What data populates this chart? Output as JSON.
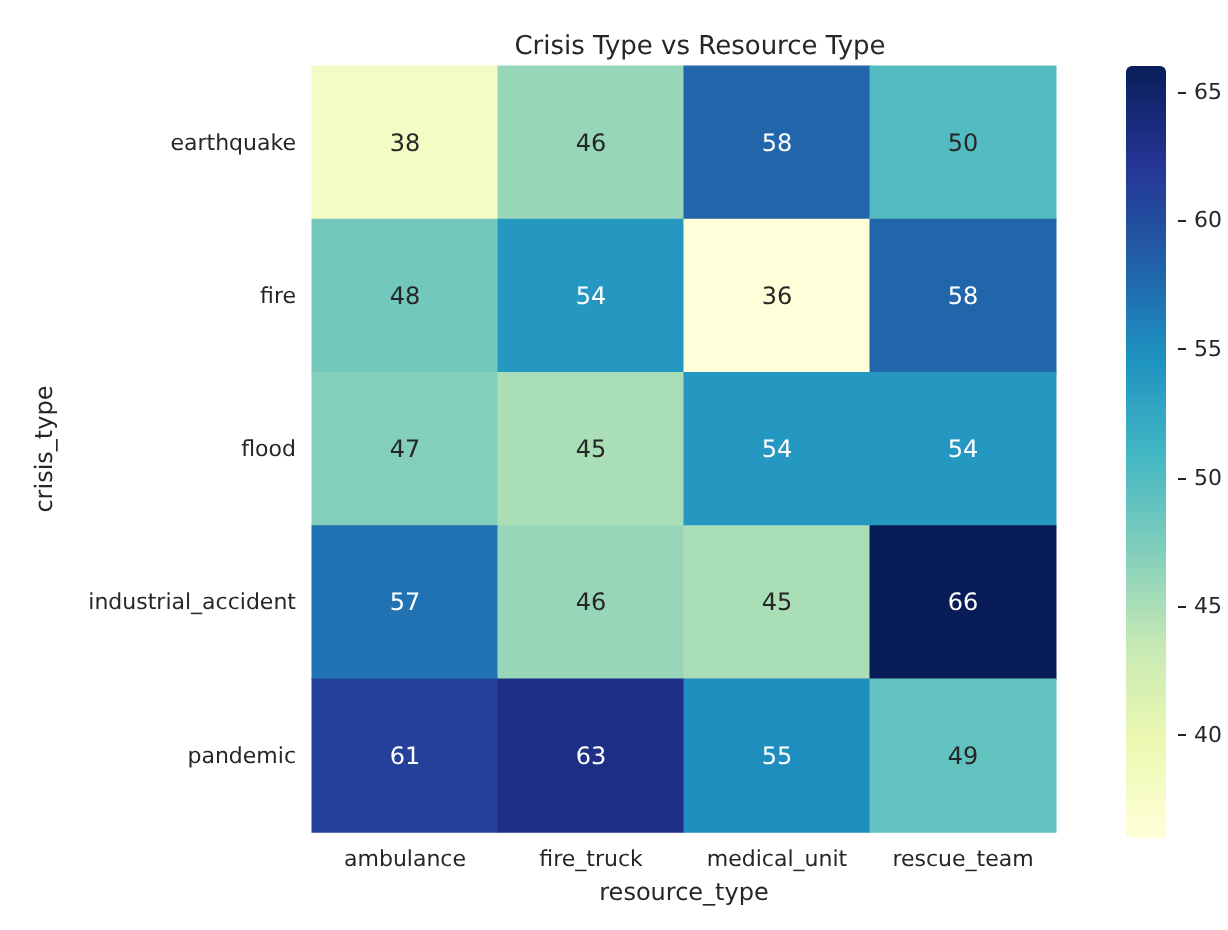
{
  "chart_data": {
    "type": "heatmap",
    "title": "Crisis Type vs Resource Type",
    "xlabel": "resource_type",
    "ylabel": "crisis_type",
    "categories": [
      "ambulance",
      "fire_truck",
      "medical_unit",
      "rescue_team"
    ],
    "y_categories": [
      "earthquake",
      "fire",
      "flood",
      "industrial_accident",
      "pandemic"
    ],
    "cells": [
      [
        38,
        46,
        58,
        50
      ],
      [
        48,
        54,
        36,
        58
      ],
      [
        47,
        45,
        54,
        54
      ],
      [
        57,
        46,
        45,
        66
      ],
      [
        61,
        63,
        55,
        49
      ]
    ],
    "data_labels": true,
    "clim": [
      36,
      66
    ],
    "cticks": [
      40,
      45,
      50,
      55,
      60,
      65
    ]
  }
}
